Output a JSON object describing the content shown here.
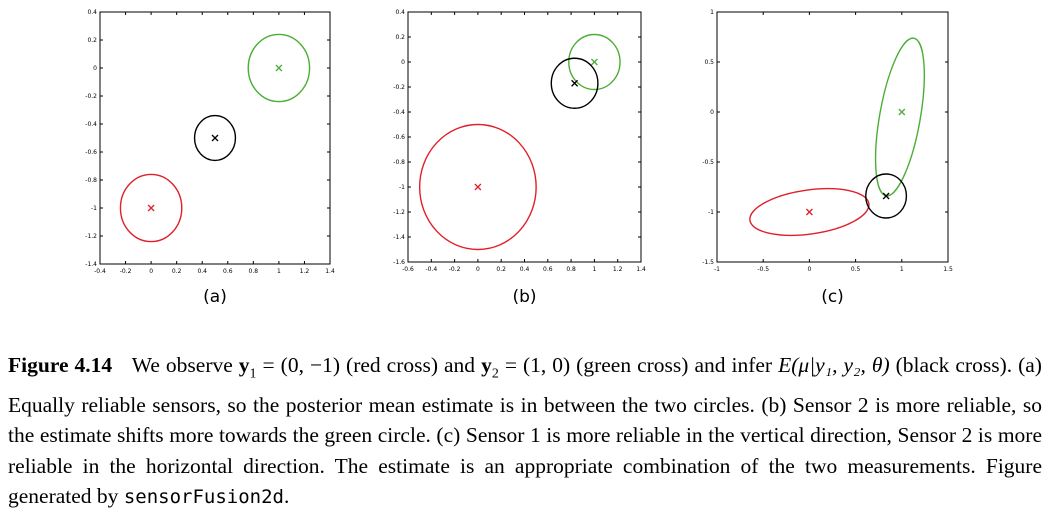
{
  "chart_data": [
    {
      "type": "scatter",
      "panel_label": "(a)",
      "xlim": [
        -0.4,
        1.4
      ],
      "ylim": [
        -1.4,
        0.4
      ],
      "xticks": [
        "-0.4",
        "-0.2",
        "0",
        "0.2",
        "0.4",
        "0.6",
        "0.8",
        "1",
        "1.2",
        "1.4"
      ],
      "yticks": [
        "0.4",
        "0.2",
        "0",
        "-0.2",
        "-0.4",
        "-0.6",
        "-0.8",
        "-1",
        "-1.2",
        "-1.4"
      ],
      "xtick_values": [
        -0.4,
        -0.2,
        0,
        0.2,
        0.4,
        0.6,
        0.8,
        1,
        1.2,
        1.4
      ],
      "ytick_values": [
        0.4,
        0.2,
        0,
        -0.2,
        -0.4,
        -0.6,
        -0.8,
        -1,
        -1.2,
        -1.4
      ],
      "series": [
        {
          "points": [
            [
              0,
              -1
            ]
          ],
          "color": "#e0202a",
          "ellipse": {
            "cx": 0,
            "cy": -1,
            "rx": 0.24,
            "ry": 0.24
          }
        },
        {
          "points": [
            [
              1,
              0
            ]
          ],
          "color": "#4cae35",
          "ellipse": {
            "cx": 1,
            "cy": 0,
            "rx": 0.24,
            "ry": 0.24
          }
        },
        {
          "points": [
            [
              0.5,
              -0.5
            ]
          ],
          "color": "#000000",
          "ellipse": {
            "cx": 0.5,
            "cy": -0.5,
            "rx": 0.16,
            "ry": 0.16
          }
        }
      ]
    },
    {
      "type": "scatter",
      "panel_label": "(b)",
      "xlim": [
        -0.6,
        1.4
      ],
      "ylim": [
        -1.6,
        0.4
      ],
      "xticks": [
        "-0.6",
        "-0.4",
        "-0.2",
        "0",
        "0.2",
        "0.4",
        "0.6",
        "0.8",
        "1",
        "1.2",
        "1.4"
      ],
      "yticks": [
        "0.4",
        "0.2",
        "0",
        "-0.2",
        "-0.4",
        "-0.6",
        "-0.8",
        "-1",
        "-1.2",
        "-1.4",
        "-1.6"
      ],
      "xtick_values": [
        -0.6,
        -0.4,
        -0.2,
        0,
        0.2,
        0.4,
        0.6,
        0.8,
        1,
        1.2,
        1.4
      ],
      "ytick_values": [
        0.4,
        0.2,
        0,
        -0.2,
        -0.4,
        -0.6,
        -0.8,
        -1,
        -1.2,
        -1.4,
        -1.6
      ],
      "series": [
        {
          "points": [
            [
              0,
              -1
            ]
          ],
          "color": "#e0202a",
          "ellipse": {
            "cx": 0,
            "cy": -1,
            "rx": 0.5,
            "ry": 0.5
          }
        },
        {
          "points": [
            [
              1,
              0
            ]
          ],
          "color": "#4cae35",
          "ellipse": {
            "cx": 1,
            "cy": 0,
            "rx": 0.22,
            "ry": 0.22
          }
        },
        {
          "points": [
            [
              0.83,
              -0.17
            ]
          ],
          "color": "#000000",
          "ellipse": {
            "cx": 0.83,
            "cy": -0.17,
            "rx": 0.2,
            "ry": 0.2
          }
        }
      ]
    },
    {
      "type": "scatter",
      "panel_label": "(c)",
      "xlim": [
        -1,
        1.5
      ],
      "ylim": [
        -1.5,
        1
      ],
      "xticks": [
        "-1",
        "-0.5",
        "0",
        "0.5",
        "1",
        "1.5"
      ],
      "yticks": [
        "1",
        "0.5",
        "0",
        "-0.5",
        "-1",
        "-1.5"
      ],
      "xtick_values": [
        -1,
        -0.5,
        0,
        0.5,
        1,
        1.5
      ],
      "ytick_values": [
        1,
        0.5,
        0,
        -0.5,
        -1,
        -1.5
      ],
      "series": [
        {
          "points": [
            [
              0,
              -1
            ]
          ],
          "color": "#e0202a",
          "ellipse": {
            "cx": 0,
            "cy": -1,
            "rx": 0.65,
            "ry": 0.22,
            "angle": -8
          }
        },
        {
          "points": [
            [
              1,
              0
            ]
          ],
          "color": "#4cae35",
          "ellipse": {
            "cx": 0.98,
            "cy": -0.05,
            "rx": 0.22,
            "ry": 0.8,
            "angle": 10
          }
        },
        {
          "points": [
            [
              0.83,
              -0.84
            ]
          ],
          "color": "#000000",
          "ellipse": {
            "cx": 0.83,
            "cy": -0.84,
            "rx": 0.22,
            "ry": 0.22
          }
        }
      ]
    }
  ],
  "caption": {
    "label": "Figure 4.14",
    "part1": "We observe ",
    "y1": "y",
    "y1_sub": "1",
    "eq1": " = (0, −1)",
    "part2": " (red cross) and ",
    "y2": "y",
    "y2_sub": "2",
    "eq2": " = (1, 0)",
    "part3": " (green cross) and infer ",
    "expr": "E(μ|y₁, y₂, θ)",
    "part4": " (black cross). (a) Equally reliable sensors, so the posterior mean estimate is in between the two circles. (b) Sensor 2 is more reliable, so the estimate shifts more towards the green circle. (c) Sensor 1 is more reliable in the vertical direction, Sensor 2 is more reliable in the horizontal direction. The estimate is an appropriate combination of the two measurements. Figure generated by ",
    "code": "sensorFusion2d",
    "end": "."
  }
}
